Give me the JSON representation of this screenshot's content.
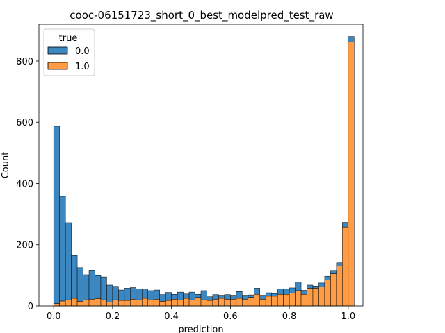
{
  "chart_data": {
    "type": "bar",
    "stacked": true,
    "title": "cooc-06151723_short_0_best_modelpred_test_raw",
    "xlabel": "prediction",
    "ylabel": "Count",
    "xlim": [
      -0.05,
      1.05
    ],
    "ylim": [
      0,
      920
    ],
    "xticks": [
      "0.0",
      "0.2",
      "0.4",
      "0.6",
      "0.8",
      "1.0"
    ],
    "yticks": [
      "0",
      "200",
      "400",
      "600",
      "800"
    ],
    "legend": {
      "title": "true",
      "placement": "upper-left",
      "entries": [
        "0.0",
        "1.0"
      ]
    },
    "bin_start": 0.0,
    "bin_width": 0.02,
    "series": [
      {
        "name": "1.0",
        "color": "#ff9c44",
        "values": [
          8,
          16,
          20,
          25,
          15,
          20,
          22,
          24,
          20,
          12,
          20,
          18,
          18,
          22,
          20,
          25,
          20,
          22,
          15,
          18,
          22,
          20,
          25,
          20,
          28,
          20,
          18,
          22,
          25,
          22,
          22,
          25,
          22,
          28,
          38,
          22,
          32,
          32,
          38,
          38,
          42,
          50,
          38,
          58,
          58,
          62,
          85,
          105,
          130,
          258,
          862
        ]
      },
      {
        "name": "0.0",
        "color": "#3d87c0",
        "values": [
          579,
          342,
          252,
          140,
          110,
          82,
          95,
          75,
          75,
          56,
          44,
          34,
          40,
          38,
          35,
          30,
          30,
          30,
          22,
          26,
          16,
          25,
          14,
          25,
          10,
          30,
          12,
          15,
          10,
          15,
          13,
          22,
          13,
          8,
          20,
          13,
          11,
          8,
          18,
          17,
          17,
          28,
          13,
          10,
          7,
          13,
          12,
          11,
          11,
          15,
          18
        ]
      }
    ]
  }
}
